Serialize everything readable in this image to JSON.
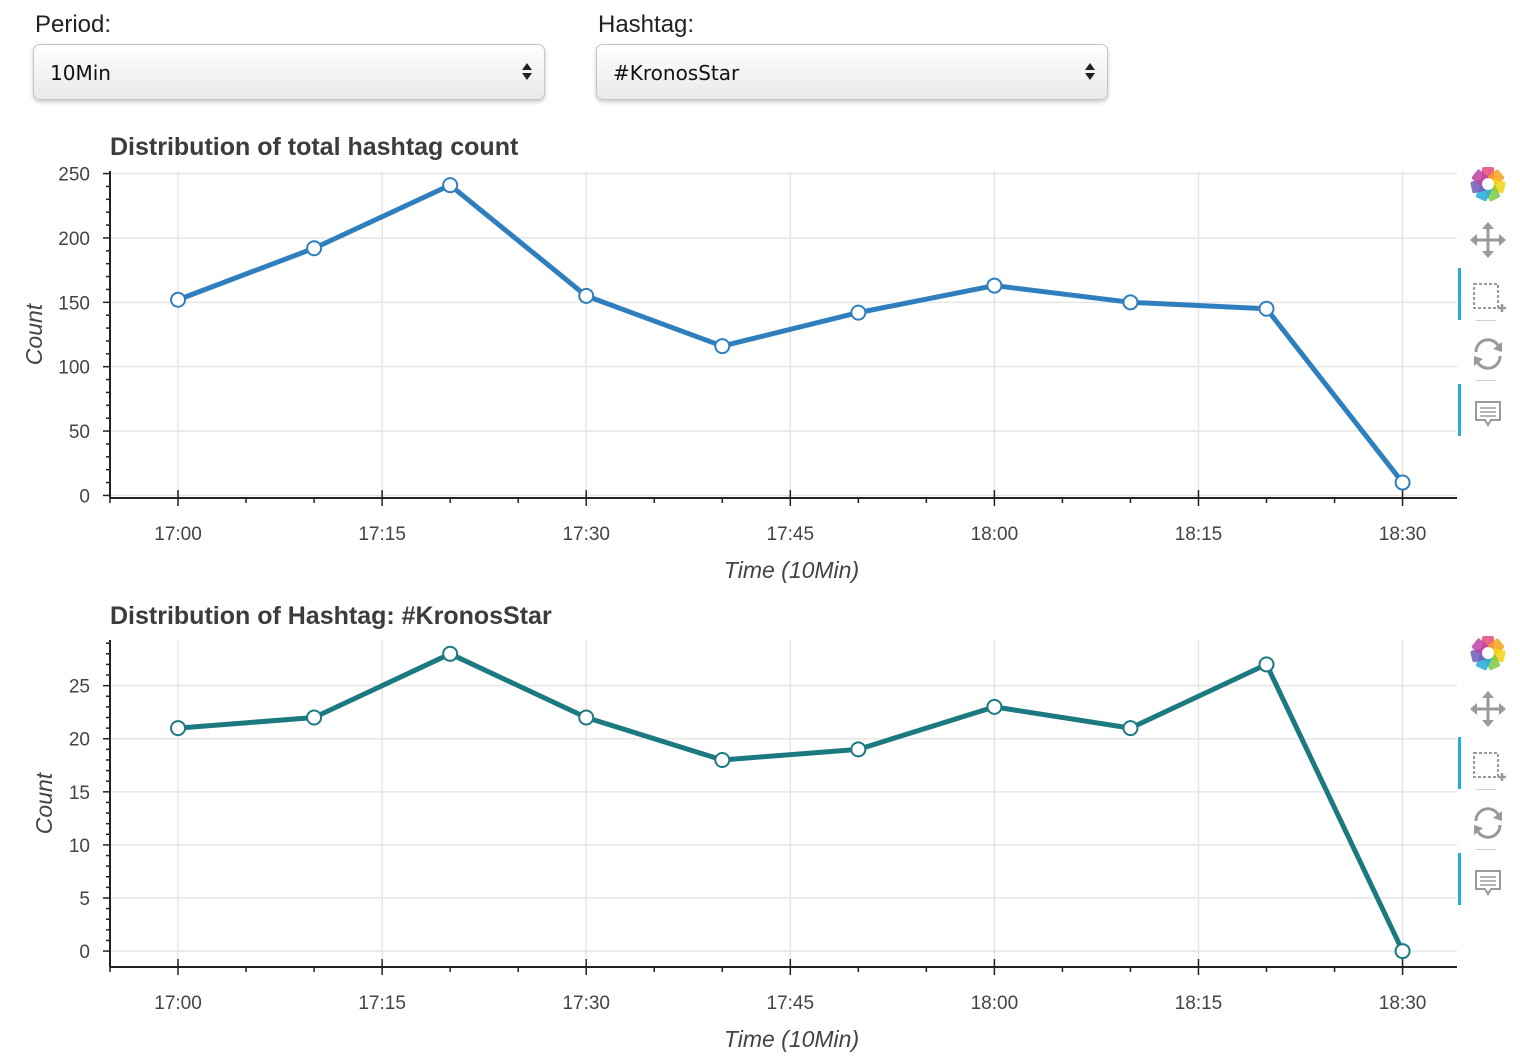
{
  "controls": {
    "period": {
      "label": "Period:",
      "value": "10Min"
    },
    "hashtag": {
      "label": "Hashtag:",
      "value": "#KronosStar"
    }
  },
  "chart_data": [
    {
      "type": "line",
      "title": "Distribution of total hashtag count",
      "xlabel": "Time (10Min)",
      "ylabel": "Count",
      "x": [
        "17:00",
        "17:10",
        "17:20",
        "17:30",
        "17:40",
        "17:50",
        "18:00",
        "18:10",
        "18:20",
        "18:30"
      ],
      "values": [
        152,
        192,
        241,
        155,
        116,
        142,
        163,
        150,
        145,
        10
      ],
      "x_ticks": [
        "17:00",
        "17:15",
        "17:30",
        "17:45",
        "18:00",
        "18:15",
        "18:30"
      ],
      "y_ticks": [
        0,
        50,
        100,
        150,
        200,
        250
      ],
      "ylim": [
        -2,
        252
      ],
      "xlim": [
        "16:55",
        "18:34"
      ],
      "grid": true,
      "color": "#2f7fbf"
    },
    {
      "type": "line",
      "title": "Distribution of Hashtag: #KronosStar",
      "xlabel": "Time (10Min)",
      "ylabel": "Count",
      "x": [
        "17:00",
        "17:10",
        "17:20",
        "17:30",
        "17:40",
        "17:50",
        "18:00",
        "18:10",
        "18:20",
        "18:30"
      ],
      "values": [
        21,
        22,
        28,
        22,
        18,
        19,
        23,
        21,
        27,
        0
      ],
      "x_ticks": [
        "17:00",
        "17:15",
        "17:30",
        "17:45",
        "18:00",
        "18:15",
        "18:30"
      ],
      "y_ticks": [
        0,
        5,
        10,
        15,
        20,
        25
      ],
      "ylim": [
        -1.5,
        29.3
      ],
      "xlim": [
        "16:55",
        "18:34"
      ],
      "grid": true,
      "color": "#1b7a80"
    }
  ],
  "toolbar": {
    "tools": [
      "bokeh-logo-icon",
      "pan-icon",
      "box-zoom-icon",
      "reset-icon",
      "hover-icon"
    ],
    "logo_colors": [
      "#e34a78",
      "#f6a21c",
      "#f4d40f",
      "#7ccb47",
      "#26aae1",
      "#6e5ab8",
      "#c241a4"
    ],
    "active_accent": "#26aae1"
  }
}
